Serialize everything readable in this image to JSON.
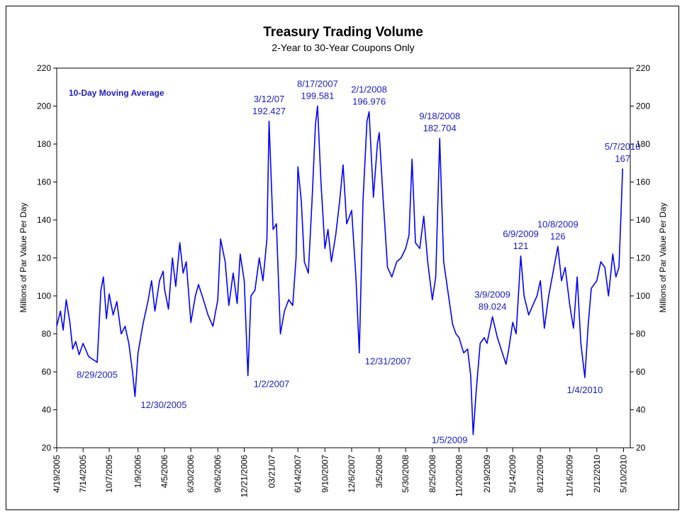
{
  "chart_data": {
    "type": "line",
    "title": "Treasury Trading Volume",
    "subtitle": "2-Year to 30-Year Coupons Only",
    "ylabel_left": "Millions of Par Value Per Day",
    "ylabel_right": "Millions of Par Value Per  Day",
    "ylim": [
      20,
      220
    ],
    "y_ticks": [
      "20",
      "40",
      "60",
      "80",
      "100",
      "120",
      "140",
      "160",
      "180",
      "200",
      "220"
    ],
    "x_range": [
      "2005-04-19",
      "2010-06-01"
    ],
    "x_ticks": [
      {
        "date": "2005-04-19",
        "label": "4/19/2005"
      },
      {
        "date": "2005-07-14",
        "label": "7/14/2005"
      },
      {
        "date": "2005-10-07",
        "label": "10/7/2005"
      },
      {
        "date": "2006-01-09",
        "label": "1/9/2006"
      },
      {
        "date": "2006-04-05",
        "label": "4/5/2006"
      },
      {
        "date": "2006-06-30",
        "label": "6/30/2006"
      },
      {
        "date": "2006-09-26",
        "label": "9/26/2006"
      },
      {
        "date": "2006-12-21",
        "label": "12/21/2006"
      },
      {
        "date": "2007-03-21",
        "label": "03/21/07"
      },
      {
        "date": "2007-06-14",
        "label": "6/14/2007"
      },
      {
        "date": "2007-09-10",
        "label": "9/10/2007"
      },
      {
        "date": "2007-12-06",
        "label": "12/6/2007"
      },
      {
        "date": "2008-03-05",
        "label": "3/5/2008"
      },
      {
        "date": "2008-05-30",
        "label": "5/30/2008"
      },
      {
        "date": "2008-08-25",
        "label": "8/25/2008"
      },
      {
        "date": "2008-11-20",
        "label": "11/20/2008"
      },
      {
        "date": "2009-02-19",
        "label": "2/19/2009"
      },
      {
        "date": "2009-05-14",
        "label": "5/14/2009"
      },
      {
        "date": "2009-08-12",
        "label": "8/12/2009"
      },
      {
        "date": "2009-11-16",
        "label": "11/16/2009"
      },
      {
        "date": "2010-02-12",
        "label": "2/12/2010"
      },
      {
        "date": "2010-05-10",
        "label": "5/10/2010"
      }
    ],
    "grid": false,
    "legend": {
      "label": "10-Day Moving Average",
      "position": "top-left"
    },
    "series": [
      {
        "color": "#0000ff",
        "points": [
          [
            "2005-04-19",
            84
          ],
          [
            "2005-05-01",
            92
          ],
          [
            "2005-05-10",
            82
          ],
          [
            "2005-05-20",
            98
          ],
          [
            "2005-06-01",
            86
          ],
          [
            "2005-06-10",
            72
          ],
          [
            "2005-06-20",
            76
          ],
          [
            "2005-07-01",
            69
          ],
          [
            "2005-07-14",
            75
          ],
          [
            "2005-08-01",
            68
          ],
          [
            "2005-08-29",
            65
          ],
          [
            "2005-09-10",
            103
          ],
          [
            "2005-09-18",
            110
          ],
          [
            "2005-09-28",
            88
          ],
          [
            "2005-10-07",
            101
          ],
          [
            "2005-10-20",
            90
          ],
          [
            "2005-11-01",
            97
          ],
          [
            "2005-11-15",
            80
          ],
          [
            "2005-11-28",
            84
          ],
          [
            "2005-12-10",
            75
          ],
          [
            "2005-12-22",
            60
          ],
          [
            "2005-12-30",
            47
          ],
          [
            "2006-01-09",
            70
          ],
          [
            "2006-01-25",
            85
          ],
          [
            "2006-02-10",
            97
          ],
          [
            "2006-02-22",
            108
          ],
          [
            "2006-03-05",
            92
          ],
          [
            "2006-03-20",
            108
          ],
          [
            "2006-04-01",
            113
          ],
          [
            "2006-04-05",
            104
          ],
          [
            "2006-04-18",
            93
          ],
          [
            "2006-05-01",
            120
          ],
          [
            "2006-05-12",
            105
          ],
          [
            "2006-05-25",
            128
          ],
          [
            "2006-06-05",
            112
          ],
          [
            "2006-06-15",
            118
          ],
          [
            "2006-06-30",
            86
          ],
          [
            "2006-07-15",
            100
          ],
          [
            "2006-07-25",
            106
          ],
          [
            "2006-08-10",
            98
          ],
          [
            "2006-08-25",
            90
          ],
          [
            "2006-09-10",
            84
          ],
          [
            "2006-09-26",
            98
          ],
          [
            "2006-10-05",
            130
          ],
          [
            "2006-10-20",
            118
          ],
          [
            "2006-11-01",
            95
          ],
          [
            "2006-11-15",
            112
          ],
          [
            "2006-11-28",
            96
          ],
          [
            "2006-12-08",
            122
          ],
          [
            "2006-12-21",
            108
          ],
          [
            "2007-01-02",
            58
          ],
          [
            "2007-01-12",
            100
          ],
          [
            "2007-01-25",
            103
          ],
          [
            "2007-02-08",
            120
          ],
          [
            "2007-02-20",
            108
          ],
          [
            "2007-03-05",
            130
          ],
          [
            "2007-03-12",
            192
          ],
          [
            "2007-03-25",
            135
          ],
          [
            "2007-04-05",
            138
          ],
          [
            "2007-04-18",
            80
          ],
          [
            "2007-05-01",
            92
          ],
          [
            "2007-05-15",
            98
          ],
          [
            "2007-05-28",
            95
          ],
          [
            "2007-06-08",
            120
          ],
          [
            "2007-06-14",
            168
          ],
          [
            "2007-06-25",
            150
          ],
          [
            "2007-07-05",
            118
          ],
          [
            "2007-07-18",
            112
          ],
          [
            "2007-07-30",
            150
          ],
          [
            "2007-08-10",
            190
          ],
          [
            "2007-08-17",
            200
          ],
          [
            "2007-08-28",
            160
          ],
          [
            "2007-09-10",
            125
          ],
          [
            "2007-09-20",
            135
          ],
          [
            "2007-10-01",
            118
          ],
          [
            "2007-10-15",
            132
          ],
          [
            "2007-10-28",
            150
          ],
          [
            "2007-11-08",
            169
          ],
          [
            "2007-11-20",
            138
          ],
          [
            "2007-12-06",
            145
          ],
          [
            "2007-12-20",
            110
          ],
          [
            "2007-12-31",
            70
          ],
          [
            "2008-01-12",
            150
          ],
          [
            "2008-01-25",
            192
          ],
          [
            "2008-02-01",
            197
          ],
          [
            "2008-02-15",
            152
          ],
          [
            "2008-02-28",
            180
          ],
          [
            "2008-03-05",
            186
          ],
          [
            "2008-03-18",
            150
          ],
          [
            "2008-04-01",
            115
          ],
          [
            "2008-04-15",
            110
          ],
          [
            "2008-05-01",
            118
          ],
          [
            "2008-05-15",
            120
          ],
          [
            "2008-05-30",
            125
          ],
          [
            "2008-06-10",
            132
          ],
          [
            "2008-06-20",
            172
          ],
          [
            "2008-07-01",
            128
          ],
          [
            "2008-07-15",
            125
          ],
          [
            "2008-07-28",
            142
          ],
          [
            "2008-08-10",
            118
          ],
          [
            "2008-08-25",
            98
          ],
          [
            "2008-09-05",
            110
          ],
          [
            "2008-09-18",
            183
          ],
          [
            "2008-10-01",
            118
          ],
          [
            "2008-10-15",
            102
          ],
          [
            "2008-10-30",
            85
          ],
          [
            "2008-11-10",
            80
          ],
          [
            "2008-11-20",
            78
          ],
          [
            "2008-12-05",
            70
          ],
          [
            "2008-12-18",
            72
          ],
          [
            "2008-12-28",
            58
          ],
          [
            "2009-01-05",
            27
          ],
          [
            "2009-01-15",
            50
          ],
          [
            "2009-01-28",
            75
          ],
          [
            "2009-02-10",
            78
          ],
          [
            "2009-02-19",
            75
          ],
          [
            "2009-03-09",
            89
          ],
          [
            "2009-03-25",
            78
          ],
          [
            "2009-04-10",
            70
          ],
          [
            "2009-04-22",
            64
          ],
          [
            "2009-05-01",
            72
          ],
          [
            "2009-05-14",
            86
          ],
          [
            "2009-05-25",
            80
          ],
          [
            "2009-06-09",
            121
          ],
          [
            "2009-06-20",
            100
          ],
          [
            "2009-07-05",
            90
          ],
          [
            "2009-07-18",
            95
          ],
          [
            "2009-08-01",
            100
          ],
          [
            "2009-08-12",
            108
          ],
          [
            "2009-08-25",
            83
          ],
          [
            "2009-09-08",
            100
          ],
          [
            "2009-09-22",
            112
          ],
          [
            "2009-10-08",
            126
          ],
          [
            "2009-10-20",
            108
          ],
          [
            "2009-11-01",
            115
          ],
          [
            "2009-11-16",
            95
          ],
          [
            "2009-11-28",
            83
          ],
          [
            "2009-12-10",
            110
          ],
          [
            "2009-12-22",
            75
          ],
          [
            "2010-01-04",
            57
          ],
          [
            "2010-01-15",
            85
          ],
          [
            "2010-01-25",
            104
          ],
          [
            "2010-02-12",
            108
          ],
          [
            "2010-02-25",
            118
          ],
          [
            "2010-03-10",
            115
          ],
          [
            "2010-03-22",
            100
          ],
          [
            "2010-04-05",
            122
          ],
          [
            "2010-04-15",
            110
          ],
          [
            "2010-04-25",
            115
          ],
          [
            "2010-05-01",
            140
          ],
          [
            "2010-05-07",
            167
          ]
        ]
      }
    ],
    "annotations": [
      {
        "date": "2005-08-29",
        "value": 65,
        "lines": [
          "8/29/2005"
        ],
        "pos": "below"
      },
      {
        "date": "2005-12-30",
        "value": 47,
        "lines": [
          "12/30/2005"
        ],
        "pos": "right"
      },
      {
        "date": "2007-01-02",
        "value": 58,
        "lines": [
          "1/2/2007"
        ],
        "pos": "right"
      },
      {
        "date": "2007-03-12",
        "value": 192,
        "lines": [
          "3/12/07",
          "192.427"
        ],
        "pos": "above"
      },
      {
        "date": "2007-08-17",
        "value": 200,
        "lines": [
          "8/17/2007",
          "199.581"
        ],
        "pos": "above"
      },
      {
        "date": "2008-02-01",
        "value": 197,
        "lines": [
          "2/1/2008",
          "196.976"
        ],
        "pos": "above"
      },
      {
        "date": "2007-12-31",
        "value": 70,
        "lines": [
          "12/31/2007"
        ],
        "pos": "right"
      },
      {
        "date": "2008-09-18",
        "value": 183,
        "lines": [
          "9/18/2008",
          "182.704"
        ],
        "pos": "above"
      },
      {
        "date": "2009-01-05",
        "value": 27,
        "lines": [
          "1/5/2009"
        ],
        "pos": "left"
      },
      {
        "date": "2009-03-09",
        "value": 89,
        "lines": [
          "3/9/2009",
          "89.024"
        ],
        "pos": "above"
      },
      {
        "date": "2009-06-09",
        "value": 121,
        "lines": [
          "6/9/2009",
          "121"
        ],
        "pos": "above"
      },
      {
        "date": "2009-10-08",
        "value": 126,
        "lines": [
          "10/8/2009",
          "126"
        ],
        "pos": "above"
      },
      {
        "date": "2010-01-04",
        "value": 57,
        "lines": [
          "1/4/2010"
        ],
        "pos": "below"
      },
      {
        "date": "2010-05-07",
        "value": 167,
        "lines": [
          "5/7/2010",
          "167"
        ],
        "pos": "above"
      }
    ]
  }
}
